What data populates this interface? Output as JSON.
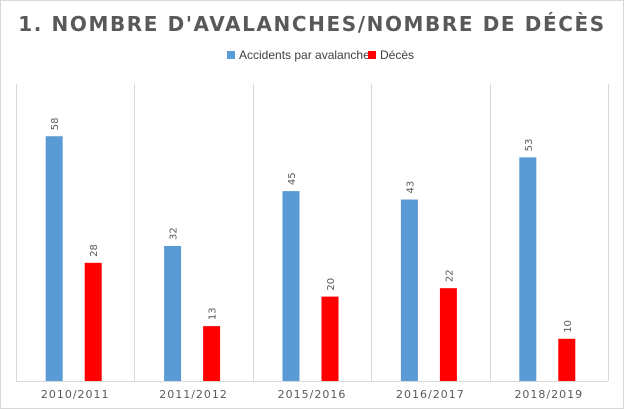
{
  "chart_data": {
    "type": "bar",
    "title": "1. NOMBRE D'AVALANCHES/NOMBRE DE DÉCÈS",
    "categories": [
      "2010/2011",
      "2011/2012",
      "2015/2016",
      "2016/2017",
      "2018/2019"
    ],
    "series": [
      {
        "name": "Accidents par avalanche",
        "values": [
          58,
          32,
          45,
          43,
          53
        ],
        "color": "#5b9bd5"
      },
      {
        "name": "Décès",
        "values": [
          28,
          13,
          20,
          22,
          10
        ],
        "color": "#ff0000"
      }
    ],
    "ylim": [
      0,
      62
    ],
    "legend_position": "top",
    "grid": "vertical category separators",
    "data_labels": "rotated, above bars"
  }
}
